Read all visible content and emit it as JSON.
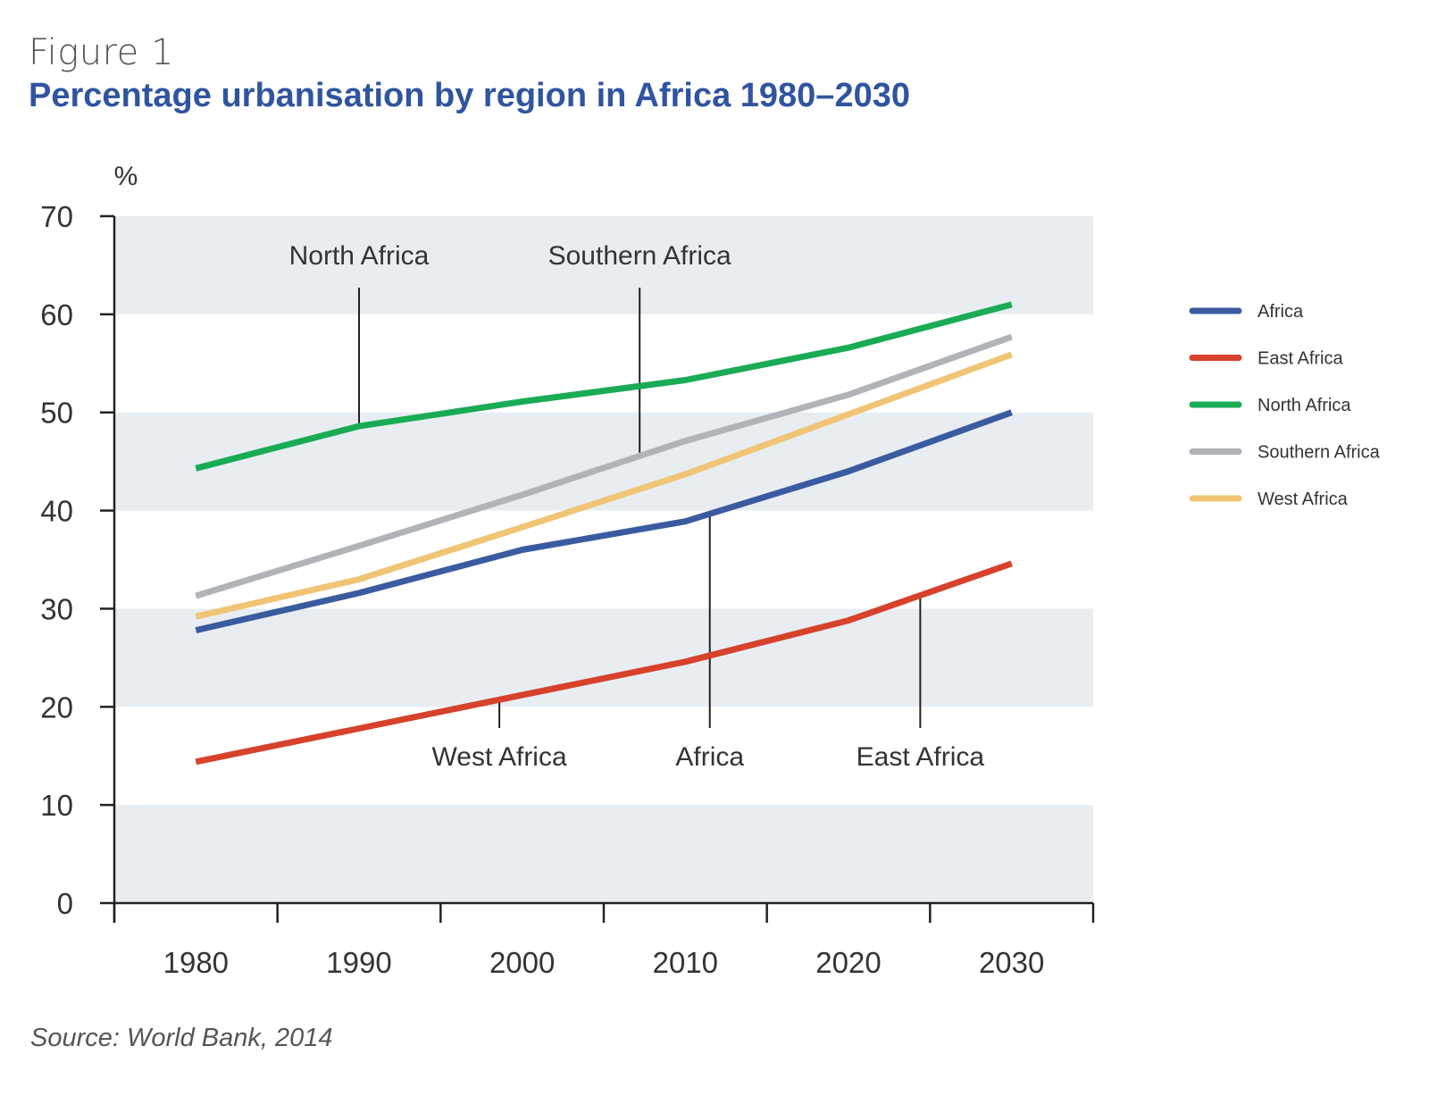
{
  "header": {
    "figure_label": "Figure 1",
    "title": "Percentage urbanisation by region in Africa 1980–2030"
  },
  "source": "Source: World Bank, 2014",
  "chart_data": {
    "type": "line",
    "title": "Percentage urbanisation by region in Africa 1980–2030",
    "ylabel": "%",
    "xlabel": "",
    "x": [
      1980,
      1990,
      2000,
      2010,
      2020,
      2030
    ],
    "xlim": [
      1975,
      2035
    ],
    "ylim": [
      0,
      70
    ],
    "yticks": [
      0,
      10,
      20,
      30,
      40,
      50,
      60,
      70
    ],
    "grid": "alternating horizontal bands",
    "band_color": "#e8edf2",
    "legend_position": "right",
    "series": [
      {
        "name": "Africa",
        "color": "#3a5ba0",
        "values": [
          27.8,
          31.6,
          36.0,
          38.9,
          44.0,
          50.0
        ]
      },
      {
        "name": "East Africa",
        "color": "#d6422b",
        "values": [
          14.4,
          17.8,
          21.2,
          24.6,
          28.8,
          34.6
        ]
      },
      {
        "name": "North Africa",
        "color": "#1aab55",
        "values": [
          44.3,
          48.6,
          51.1,
          53.3,
          56.6,
          61.0
        ]
      },
      {
        "name": "Southern Africa",
        "color": "#b0b3b8",
        "values": [
          31.3,
          36.4,
          41.6,
          47.1,
          51.8,
          57.7
        ]
      },
      {
        "name": "West Africa",
        "color": "#efc474",
        "values": [
          29.2,
          33.0,
          38.3,
          43.7,
          49.8,
          55.9
        ]
      }
    ],
    "annotations": [
      {
        "text": "North Africa",
        "x": 1990,
        "y": 48.6,
        "label_side": "top"
      },
      {
        "text": "Southern Africa",
        "x": 2007.2,
        "y": 45.9,
        "label_side": "top"
      },
      {
        "text": "West Africa",
        "x": 1998.6,
        "y": 21.0,
        "label_side": "bottom"
      },
      {
        "text": "Africa",
        "x": 2011.5,
        "y": 39.5,
        "label_side": "bottom"
      },
      {
        "text": "East Africa",
        "x": 2024.4,
        "y": 31.3,
        "label_side": "bottom"
      }
    ]
  }
}
